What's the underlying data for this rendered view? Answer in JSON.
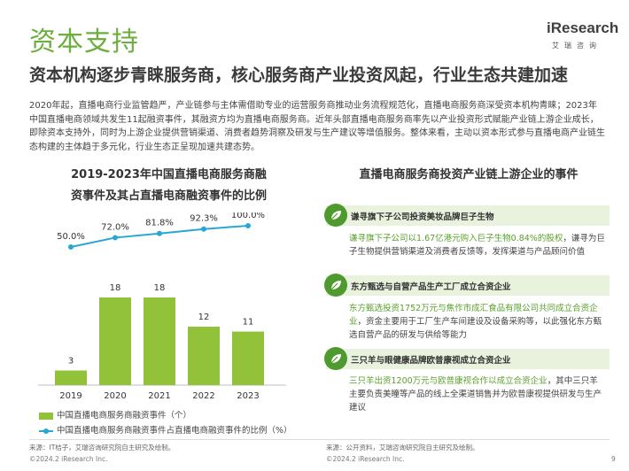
{
  "header": {
    "title": "资本支持",
    "logo_text": "iResearch",
    "logo_tagline": "艾瑞咨询"
  },
  "subtitle": "资本机构逐步青睐服务商，核心服务商产业投资风起，行业生态共建加速",
  "intro": "2020年起，直播电商行业监管趋严，产业链参与主体需借助专业的运营服务商推动业务流程规范化，直播电商服务商深受资本机构青睐；2023年中国直播电商领域共发生11起融资事件，其融资方均为直播电商服务商。近年头部直播电商服务商率先以产业投资形式赋能产业链上游企业成长，即除资本支持外，同时为上游企业提供营销渠道、消费者趋势洞察及研发与生产建议等增值服务。整体来看，主动以资本形式参与直播电商产业链生态构建的主体趋于多元化，行业生态正呈现加速共建态势。",
  "left_panel": {
    "title_line1": "2019-2023年中国直播电商服务商融",
    "title_line2": "资事件及其占直播电商融资事件的比例",
    "legend_bar": "中国直播电商服务商融资事件（个）",
    "legend_line": "中国直播电商服务商融资事件占直播电商融资事件的比例（%）",
    "source": "来源：IT桔子，艾瑞咨询研究院自主研究及绘制。"
  },
  "chart_data": {
    "type": "bar",
    "categories": [
      "2019",
      "2020",
      "2021",
      "2022",
      "2023"
    ],
    "series": [
      {
        "name": "中国直播电商服务商融资事件（个）",
        "type": "bar",
        "values": [
          3,
          18,
          18,
          12,
          11
        ],
        "labels": [
          "3",
          "18",
          "18",
          "12",
          "11"
        ]
      },
      {
        "name": "中国直播电商服务商融资事件占直播电商融资事件的比例（%）",
        "type": "line",
        "values": [
          50.0,
          72.0,
          81.8,
          92.3,
          100.0
        ],
        "labels": [
          "50.0%",
          "72.0%",
          "81.8%",
          "92.3%",
          "100.0%"
        ]
      }
    ],
    "colors": {
      "bar": "#92c23a",
      "line": "#2aa6d4"
    }
  },
  "right_panel": {
    "title": "直播电商服务商投资产业链上游企业的事件",
    "events": [
      {
        "heading": "谦寻旗下子公司投资美妆品牌巨子生物",
        "highlight": "谦寻旗下子公司以1.67亿港元购入巨子生物0.84%的股权",
        "body": "，谦寻为巨子生物提供营销渠道及消费者反馈等，发挥渠道与产品顾问价值"
      },
      {
        "heading": "东方甄选与自营产品生产工厂成立合资企业",
        "highlight": "东方甄选投资1752万元与焦作市成汇食品有限公司共同成立合资企业",
        "body": "，资金主要用于工厂生产车间建设及设备采购等，以此强化东方甄选自营产品的研发与供给等能力"
      },
      {
        "heading": "三只羊与眼健康品牌欧普康视成立合资企业",
        "highlight": "三只羊出资1200万元与欧普康视合作以成立合资企业",
        "body": "，其中三只羊主要负责美瞳等产品的线上全渠道销售并为欧普康视提供研发与生产建议"
      }
    ],
    "source": "来源：公开资料，艾瑞咨询研究院自主研究及绘制。"
  },
  "footer": {
    "copyright_left": "©2024.2 iResearch Inc.",
    "copyright_right": "©2024.2 iResearch Inc.",
    "page_number": "9"
  }
}
